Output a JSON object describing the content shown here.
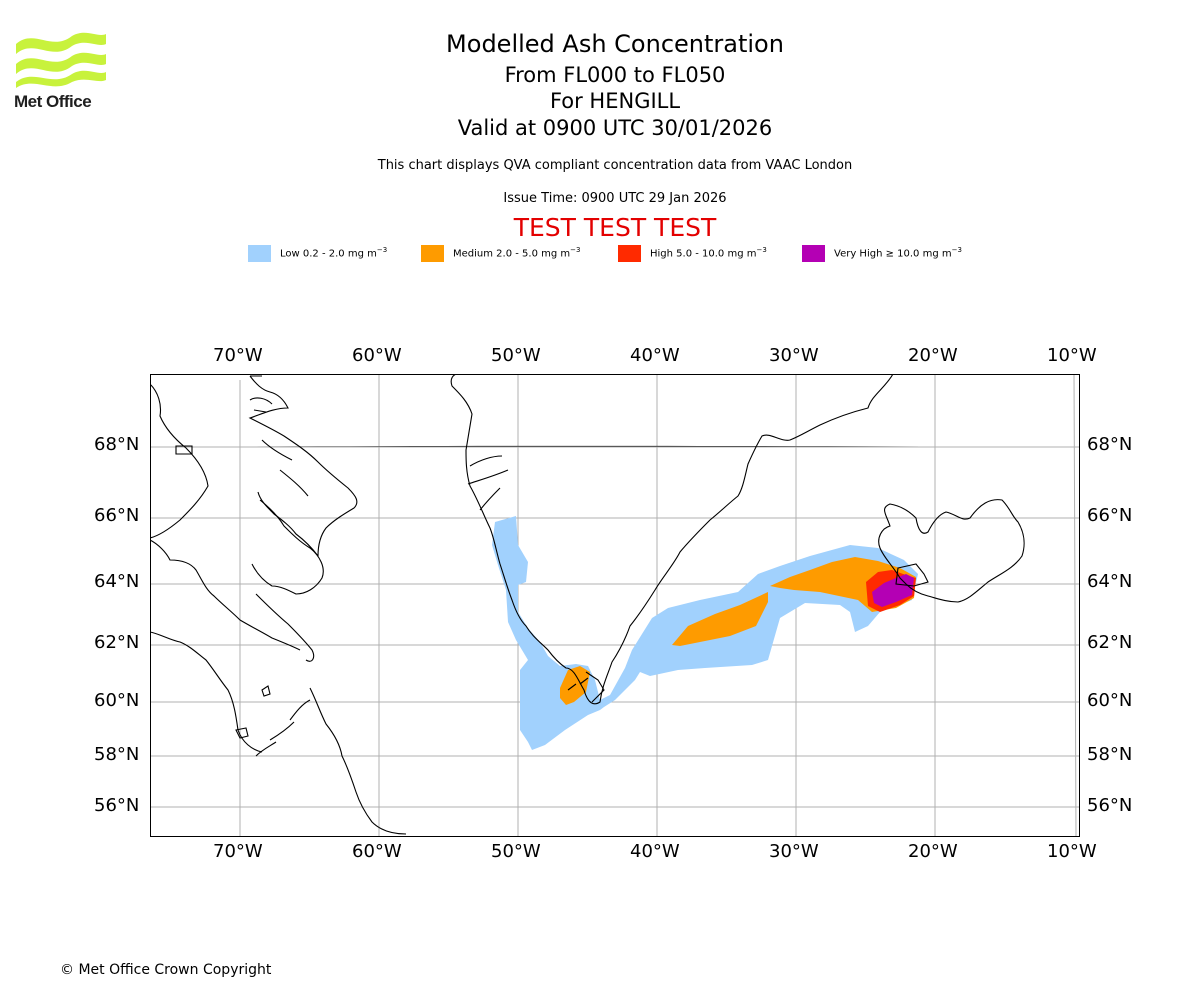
{
  "header": {
    "logo_text": "Met Office",
    "title": "Modelled Ash Concentration",
    "flight_levels": "From FL000 to FL050",
    "location": "For HENGILL",
    "valid_time": "Valid at 0900 UTC 30/01/2026",
    "description": "This chart displays QVA compliant concentration data from VAAC London",
    "issue_time": "Issue Time: 0900 UTC 29 Jan 2026",
    "test_banner": "TEST TEST TEST"
  },
  "legend": {
    "unit_prefix": "mg m",
    "unit_exp": "−3",
    "items": [
      {
        "label": "Low 0.2 - 2.0",
        "color": "#a1d1fd"
      },
      {
        "label": "Medium 2.0 - 5.0",
        "color": "#fe9b00"
      },
      {
        "label": "High 5.0 - 10.0",
        "color": "#ff2a00"
      },
      {
        "label": "Very High  ≥  10.0",
        "color": "#b400b4"
      }
    ]
  },
  "axes": {
    "longitude_labels": [
      "70°W",
      "60°W",
      "50°W",
      "40°W",
      "30°W",
      "20°W",
      "10°W"
    ],
    "latitude_labels": [
      "68°N",
      "66°N",
      "64°N",
      "62°N",
      "60°N",
      "58°N",
      "56°N"
    ]
  },
  "colors": {
    "low": "#a1d1fd",
    "medium": "#fe9b00",
    "high": "#ff2a00",
    "very_high": "#b400b4",
    "grid": "#b0b0b0",
    "logo": "#c8f23c"
  },
  "footer": {
    "copyright": "© Met Office Crown Copyright"
  }
}
